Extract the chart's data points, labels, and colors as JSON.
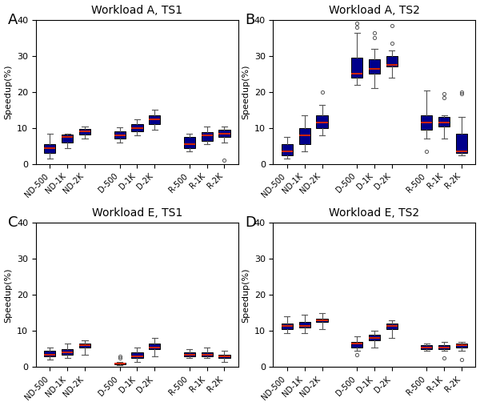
{
  "titles": [
    "Workload A, TS1",
    "Workload A, TS2",
    "Workload E, TS1",
    "Workload E, TS2"
  ],
  "panel_labels": [
    "A",
    "B",
    "C",
    "D"
  ],
  "categories": [
    "ND-500",
    "ND-1K",
    "ND-2K",
    "D-500",
    "D-1K",
    "D-2K",
    "R-500",
    "R-1K",
    "R-2K"
  ],
  "box_facecolor": "#00008B",
  "median_color": "#CC2200",
  "whisker_color": "#555555",
  "cap_color": "#555555",
  "flier_color": "#555555",
  "ylabel": "Speedup(%)",
  "ylim": [
    0,
    40
  ],
  "yticks": [
    0,
    10,
    20,
    30,
    40
  ],
  "panels": {
    "A": {
      "stats": [
        {
          "med": 4.5,
          "q1": 3.0,
          "q3": 5.5,
          "whislo": 1.5,
          "whishi": 8.5,
          "fliers": []
        },
        {
          "med": 7.5,
          "q1": 6.0,
          "q3": 8.2,
          "whislo": 4.5,
          "whishi": 8.5,
          "fliers": []
        },
        {
          "med": 9.0,
          "q1": 8.2,
          "q3": 9.8,
          "whislo": 7.2,
          "whishi": 10.5,
          "fliers": []
        },
        {
          "med": 8.0,
          "q1": 7.2,
          "q3": 9.2,
          "whislo": 6.0,
          "whishi": 10.2,
          "fliers": []
        },
        {
          "med": 10.0,
          "q1": 9.0,
          "q3": 11.0,
          "whislo": 8.0,
          "whishi": 12.5,
          "fliers": []
        },
        {
          "med": 12.5,
          "q1": 11.0,
          "q3": 13.5,
          "whislo": 9.5,
          "whishi": 15.0,
          "fliers": []
        },
        {
          "med": 5.5,
          "q1": 4.5,
          "q3": 7.5,
          "whislo": 3.5,
          "whishi": 8.5,
          "fliers": []
        },
        {
          "med": 8.0,
          "q1": 6.5,
          "q3": 8.8,
          "whislo": 5.5,
          "whishi": 10.5,
          "fliers": []
        },
        {
          "med": 8.5,
          "q1": 7.5,
          "q3": 9.5,
          "whislo": 6.0,
          "whishi": 10.5,
          "fliers": [
            1.0
          ]
        }
      ]
    },
    "B": {
      "stats": [
        {
          "med": 3.5,
          "q1": 2.5,
          "q3": 5.5,
          "whislo": 1.5,
          "whishi": 7.5,
          "fliers": []
        },
        {
          "med": 8.0,
          "q1": 5.5,
          "q3": 10.0,
          "whislo": 3.5,
          "whishi": 13.5,
          "fliers": []
        },
        {
          "med": 11.5,
          "q1": 10.0,
          "q3": 13.5,
          "whislo": 8.0,
          "whishi": 16.5,
          "fliers": [
            20.0
          ]
        },
        {
          "med": 25.0,
          "q1": 24.0,
          "q3": 29.5,
          "whislo": 22.0,
          "whishi": 36.5,
          "fliers": [
            38.0,
            39.0
          ]
        },
        {
          "med": 26.5,
          "q1": 25.0,
          "q3": 29.0,
          "whislo": 21.0,
          "whishi": 32.0,
          "fliers": [
            35.0,
            36.5
          ]
        },
        {
          "med": 27.5,
          "q1": 27.0,
          "q3": 30.0,
          "whislo": 24.0,
          "whishi": 31.5,
          "fliers": [
            33.5,
            38.5
          ]
        },
        {
          "med": 11.5,
          "q1": 9.5,
          "q3": 13.5,
          "whislo": 7.0,
          "whishi": 20.5,
          "fliers": [
            3.5
          ]
        },
        {
          "med": 11.5,
          "q1": 10.5,
          "q3": 13.0,
          "whislo": 7.0,
          "whishi": 13.5,
          "fliers": [
            18.5,
            19.5
          ]
        },
        {
          "med": 3.5,
          "q1": 3.0,
          "q3": 8.5,
          "whislo": 2.5,
          "whishi": 13.0,
          "fliers": [
            19.5,
            20.0
          ]
        }
      ]
    },
    "C": {
      "stats": [
        {
          "med": 3.5,
          "q1": 3.0,
          "q3": 4.5,
          "whislo": 2.0,
          "whishi": 5.5,
          "fliers": []
        },
        {
          "med": 4.0,
          "q1": 3.5,
          "q3": 5.0,
          "whislo": 2.5,
          "whishi": 6.5,
          "fliers": []
        },
        {
          "med": 6.0,
          "q1": 5.5,
          "q3": 6.5,
          "whislo": 3.5,
          "whishi": 7.5,
          "fliers": []
        },
        {
          "med": 1.0,
          "q1": 0.8,
          "q3": 1.2,
          "whislo": 0.5,
          "whishi": 1.5,
          "fliers": [
            2.5,
            3.0
          ]
        },
        {
          "med": 3.0,
          "q1": 2.5,
          "q3": 4.0,
          "whislo": 1.5,
          "whishi": 5.5,
          "fliers": []
        },
        {
          "med": 5.5,
          "q1": 5.0,
          "q3": 6.5,
          "whislo": 3.0,
          "whishi": 8.0,
          "fliers": []
        },
        {
          "med": 3.5,
          "q1": 3.0,
          "q3": 4.0,
          "whislo": 2.5,
          "whishi": 5.0,
          "fliers": []
        },
        {
          "med": 3.5,
          "q1": 3.0,
          "q3": 4.0,
          "whislo": 2.5,
          "whishi": 5.5,
          "fliers": []
        },
        {
          "med": 3.0,
          "q1": 2.5,
          "q3": 3.5,
          "whislo": 1.5,
          "whishi": 4.5,
          "fliers": []
        }
      ]
    },
    "D": {
      "stats": [
        {
          "med": 11.5,
          "q1": 10.5,
          "q3": 12.0,
          "whislo": 9.5,
          "whishi": 14.0,
          "fliers": []
        },
        {
          "med": 11.5,
          "q1": 11.0,
          "q3": 12.5,
          "whislo": 9.5,
          "whishi": 14.5,
          "fliers": []
        },
        {
          "med": 13.0,
          "q1": 12.5,
          "q3": 13.5,
          "whislo": 10.5,
          "whishi": 15.0,
          "fliers": []
        },
        {
          "med": 6.5,
          "q1": 5.5,
          "q3": 7.0,
          "whislo": 4.5,
          "whishi": 8.5,
          "fliers": [
            3.5
          ]
        },
        {
          "med": 8.0,
          "q1": 7.5,
          "q3": 9.0,
          "whislo": 5.5,
          "whishi": 10.0,
          "fliers": []
        },
        {
          "med": 11.5,
          "q1": 10.5,
          "q3": 12.0,
          "whislo": 8.0,
          "whishi": 13.0,
          "fliers": []
        },
        {
          "med": 5.5,
          "q1": 5.0,
          "q3": 6.0,
          "whislo": 4.5,
          "whishi": 6.5,
          "fliers": []
        },
        {
          "med": 5.5,
          "q1": 5.0,
          "q3": 6.0,
          "whislo": 4.5,
          "whishi": 7.0,
          "fliers": [
            2.5
          ]
        },
        {
          "med": 6.0,
          "q1": 5.5,
          "q3": 6.5,
          "whislo": 4.5,
          "whishi": 7.0,
          "fliers": [
            2.0
          ]
        }
      ]
    }
  }
}
